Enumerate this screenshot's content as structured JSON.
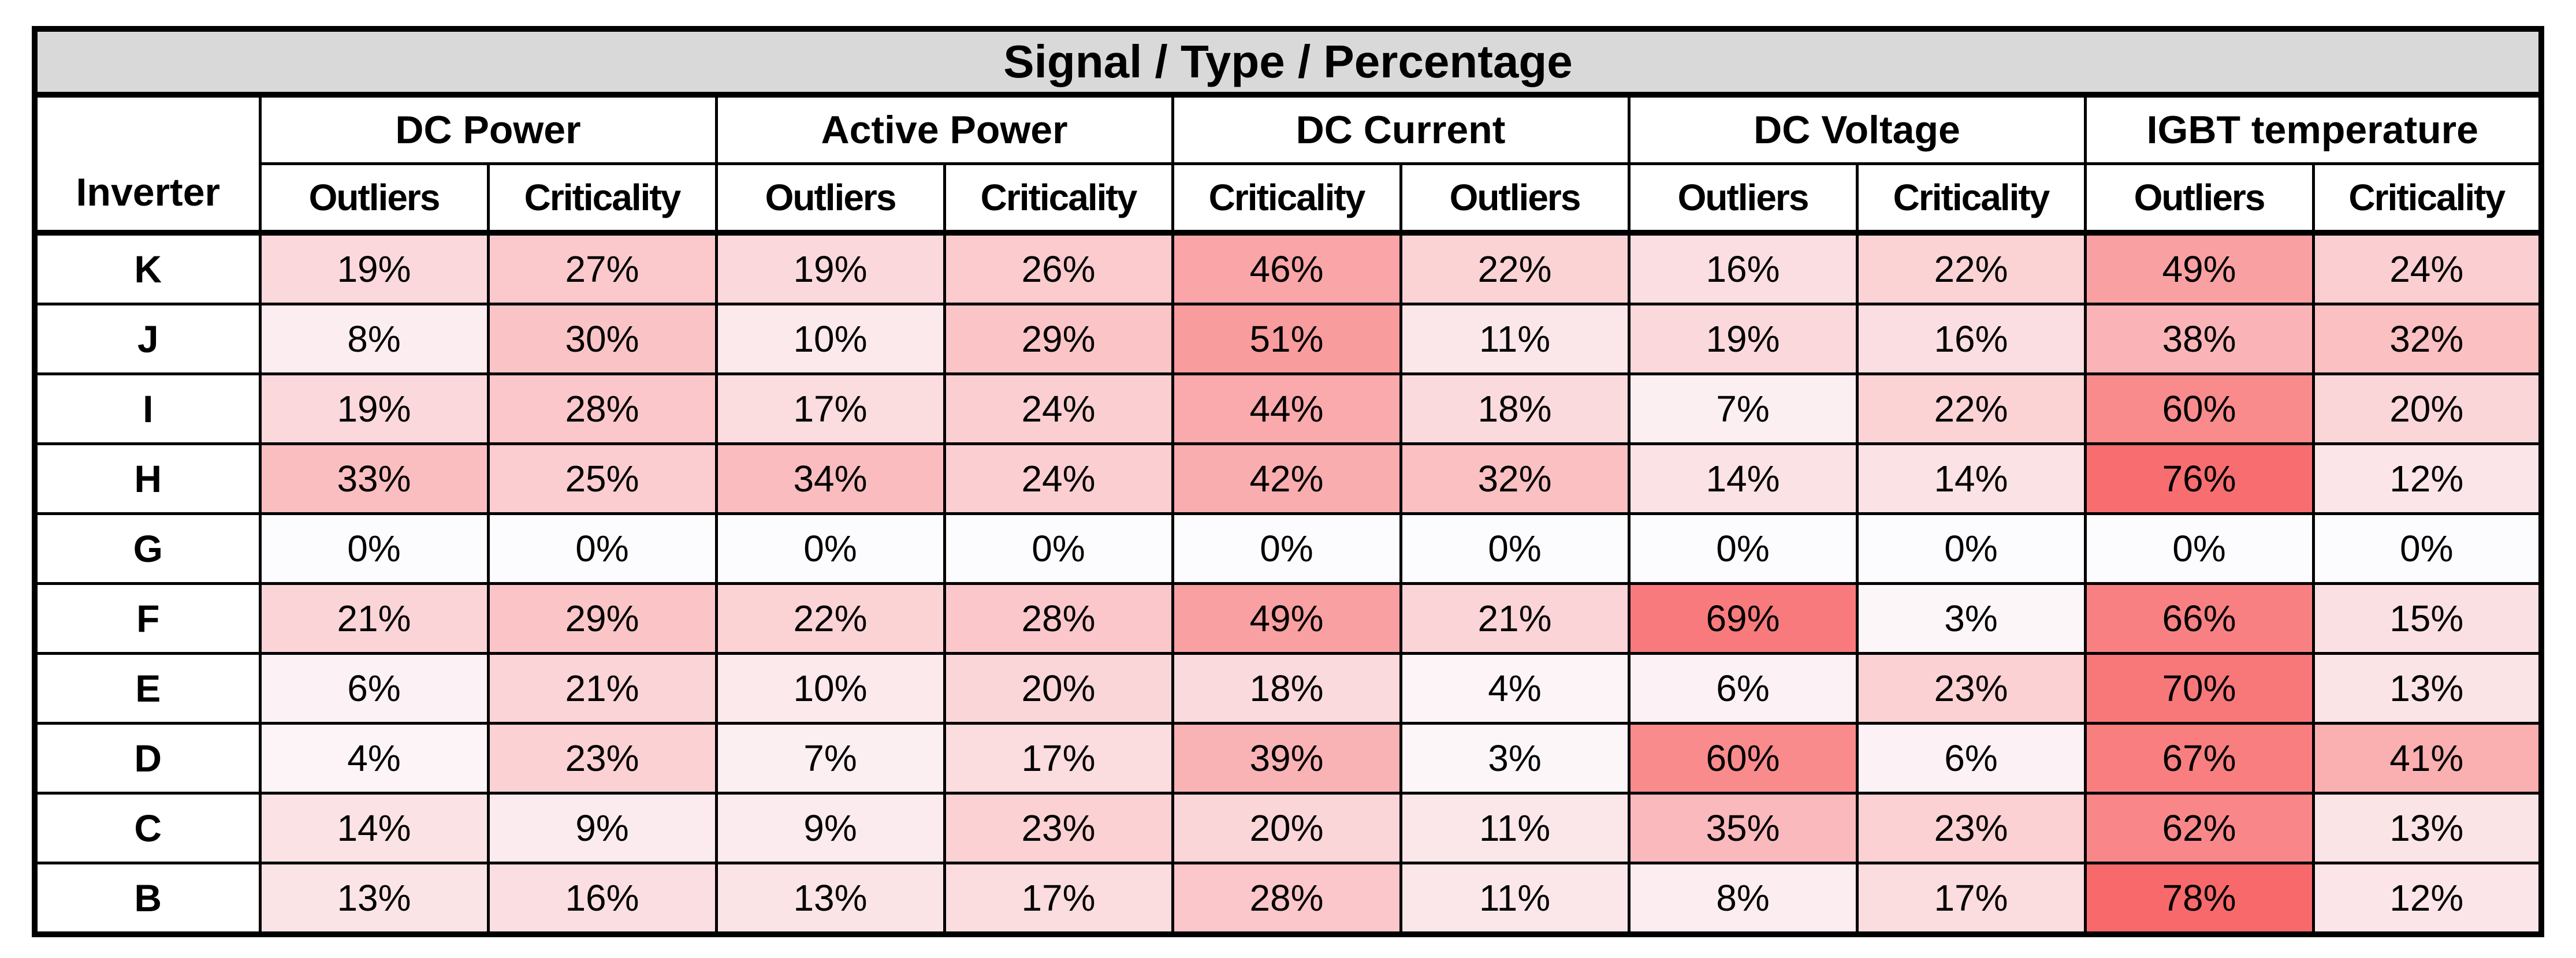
{
  "chart_data": {
    "type": "heatmap",
    "title": "Signal / Type / Percentage",
    "row_header": "Inverter",
    "col_groups": [
      {
        "label": "DC Power",
        "columns": [
          "Outliers",
          "Criticality"
        ]
      },
      {
        "label": "Active Power",
        "columns": [
          "Outliers",
          "Criticality"
        ]
      },
      {
        "label": "DC Current",
        "columns": [
          "Criticality",
          "Outliers"
        ]
      },
      {
        "label": "DC Voltage",
        "columns": [
          "Outliers",
          "Criticality"
        ]
      },
      {
        "label": "IGBT temperature",
        "columns": [
          "Outliers",
          "Criticality"
        ]
      }
    ],
    "rows": [
      {
        "label": "K",
        "values": [
          19,
          27,
          19,
          26,
          46,
          22,
          16,
          22,
          49,
          24
        ]
      },
      {
        "label": "J",
        "values": [
          8,
          30,
          10,
          29,
          51,
          11,
          19,
          16,
          38,
          32
        ]
      },
      {
        "label": "I",
        "values": [
          19,
          28,
          17,
          24,
          44,
          18,
          7,
          22,
          60,
          20
        ]
      },
      {
        "label": "H",
        "values": [
          33,
          25,
          34,
          24,
          42,
          32,
          14,
          14,
          76,
          12
        ]
      },
      {
        "label": "G",
        "values": [
          0,
          0,
          0,
          0,
          0,
          0,
          0,
          0,
          0,
          0
        ]
      },
      {
        "label": "F",
        "values": [
          21,
          29,
          22,
          28,
          49,
          21,
          69,
          3,
          66,
          15
        ]
      },
      {
        "label": "E",
        "values": [
          6,
          21,
          10,
          20,
          18,
          4,
          6,
          23,
          70,
          13
        ]
      },
      {
        "label": "D",
        "values": [
          4,
          23,
          7,
          17,
          39,
          3,
          60,
          6,
          67,
          41
        ]
      },
      {
        "label": "C",
        "values": [
          14,
          9,
          9,
          23,
          20,
          11,
          35,
          23,
          62,
          13
        ]
      },
      {
        "label": "B",
        "values": [
          13,
          16,
          13,
          17,
          28,
          11,
          8,
          17,
          78,
          12
        ]
      }
    ],
    "unit": "%",
    "color_scale": {
      "min_value": 0,
      "max_value": 78,
      "min_color": "#FCFCFF",
      "max_color": "#F8696B"
    },
    "style": {
      "title_background": "#D9D9D9",
      "border_color": "#000000",
      "text_color": "#000000"
    },
    "legend_position": "none",
    "grid": true
  }
}
